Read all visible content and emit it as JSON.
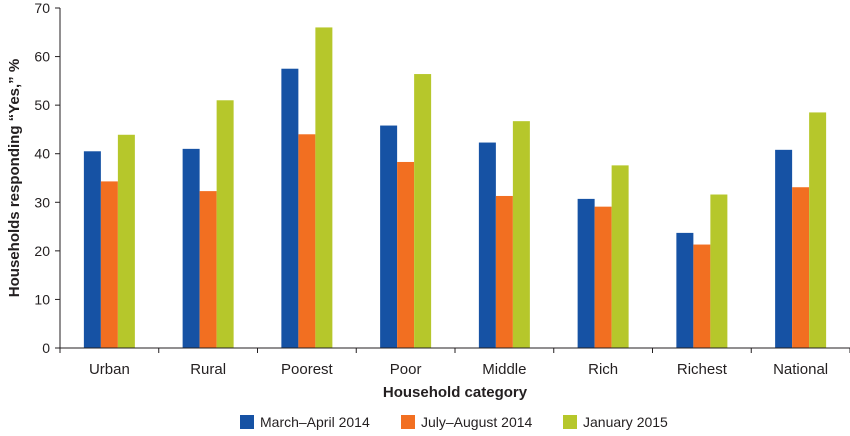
{
  "chart_data": {
    "type": "bar",
    "title": "",
    "xlabel": "Household category",
    "ylabel": "Households responding “Yes,” %",
    "ylim": [
      0,
      70
    ],
    "yticks": [
      0,
      10,
      20,
      30,
      40,
      50,
      60,
      70
    ],
    "grid": false,
    "legend_position": "bottom",
    "categories": [
      "Urban",
      "Rural",
      "Poorest",
      "Poor",
      "Middle",
      "Rich",
      "Richest",
      "National"
    ],
    "series": [
      {
        "name": "March–April 2014",
        "color": "#1652a4",
        "values": [
          40.5,
          41,
          57.5,
          45.8,
          42.3,
          30.7,
          23.7,
          40.8
        ]
      },
      {
        "name": "July–August 2014",
        "color": "#f26f21",
        "values": [
          34.3,
          32.3,
          44,
          38.3,
          31.3,
          29.1,
          21.3,
          33.1
        ]
      },
      {
        "name": "January 2015",
        "color": "#b6c72b",
        "values": [
          43.9,
          51,
          66,
          56.4,
          46.7,
          37.6,
          31.6,
          48.5
        ]
      }
    ]
  }
}
